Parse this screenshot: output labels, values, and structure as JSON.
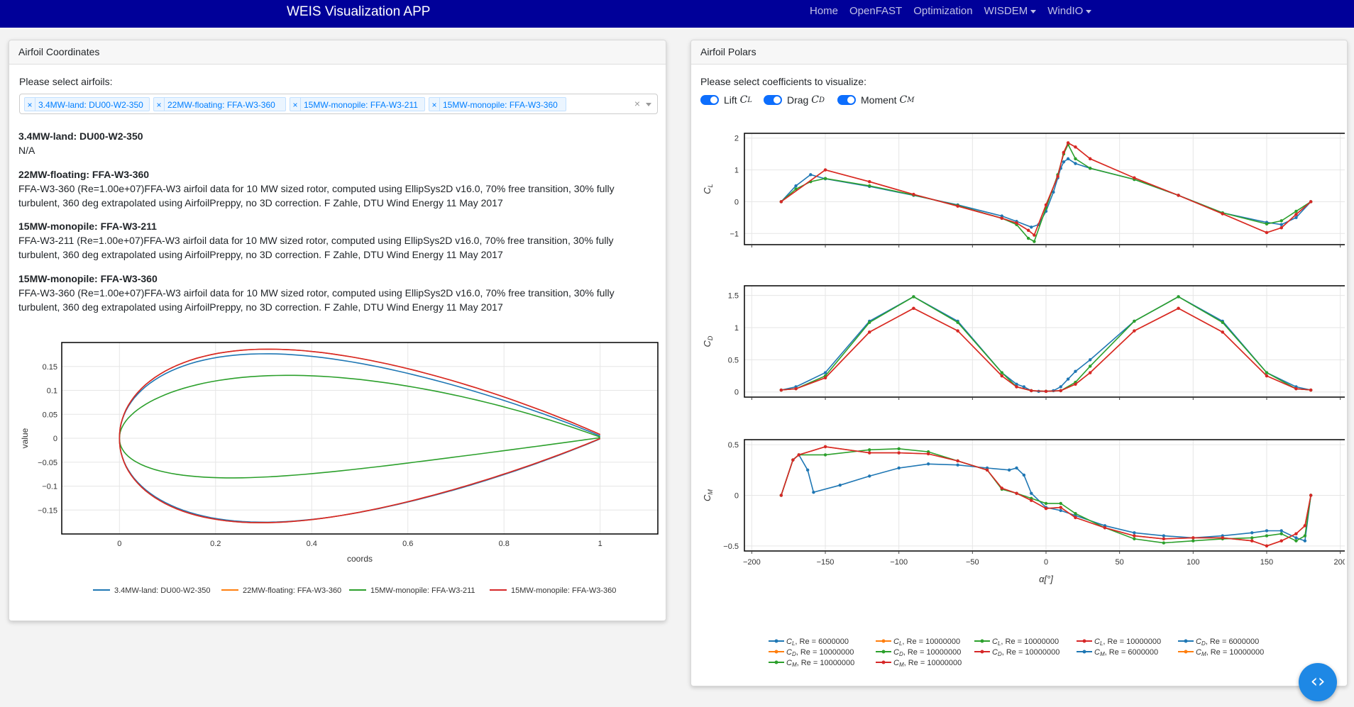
{
  "navbar": {
    "brand": "WEIS Visualization APP",
    "items": [
      {
        "label": "Home",
        "dropdown": false
      },
      {
        "label": "OpenFAST",
        "dropdown": false
      },
      {
        "label": "Optimization",
        "dropdown": false
      },
      {
        "label": "WISDEM",
        "dropdown": true
      },
      {
        "label": "WindIO",
        "dropdown": true
      }
    ],
    "background": "#000099"
  },
  "left_card": {
    "title": "Airfoil Coordinates",
    "prompt": "Please select airfoils:",
    "selected": [
      "3.4MW-land: DU00-W2-350",
      "22MW-floating: FFA-W3-360",
      "15MW-monopile: FFA-W3-211",
      "15MW-monopile: FFA-W3-360"
    ],
    "clear_glyph": "×",
    "descriptions": [
      {
        "title": "3.4MW-land: DU00-W2-350",
        "text": "N/A"
      },
      {
        "title": "22MW-floating: FFA-W3-360",
        "text": "FFA-W3-360 (Re=1.00e+07)FFA-W3 airfoil data for 10 MW sized rotor, computed using EllipSys2D v16.0, 70% free transition, 30% fully turbulent, 360 deg extrapolated using AirfoilPreppy, no 3D correction. F Zahle, DTU Wind Energy 11 May 2017"
      },
      {
        "title": "15MW-monopile: FFA-W3-211",
        "text": "FFA-W3-211 (Re=1.00e+07)FFA-W3 airfoil data for 10 MW sized rotor, computed using EllipSys2D v16.0, 70% free transition, 30% fully turbulent, 360 deg extrapolated using AirfoilPreppy, no 3D correction. F Zahle, DTU Wind Energy 11 May 2017"
      },
      {
        "title": "15MW-monopile: FFA-W3-360",
        "text": "FFA-W3-360 (Re=1.00e+07)FFA-W3 airfoil data for 10 MW sized rotor, computed using EllipSys2D v16.0, 70% free transition, 30% fully turbulent, 360 deg extrapolated using AirfoilPreppy, no 3D correction. F Zahle, DTU Wind Energy 11 May 2017"
      }
    ]
  },
  "right_card": {
    "title": "Airfoil Polars",
    "prompt": "Please select coefficients to visualize:",
    "toggles": [
      {
        "label": "Lift",
        "sym": "C",
        "sub": "L",
        "on": true
      },
      {
        "label": "Drag",
        "sym": "C",
        "sub": "D",
        "on": true
      },
      {
        "label": "Moment",
        "sym": "C",
        "sub": "M",
        "on": true
      }
    ]
  },
  "fab_glyph": "‹›",
  "chart_data": [
    {
      "type": "line",
      "xlabel": "coords",
      "ylabel": "value",
      "xlim": [
        -0.12,
        1.12
      ],
      "ylim": [
        -0.2,
        0.2
      ],
      "xticks": [
        "0",
        "0.2",
        "0.4",
        "0.6",
        "0.8",
        "1"
      ],
      "yticks": [
        "0.15",
        "0.1",
        "0.05",
        "0",
        "−0.05",
        "−0.1",
        "−0.15"
      ],
      "legend_position": "bottom",
      "series": [
        {
          "name": "3.4MW-land: DU00-W2-350",
          "color": "#1f77b4",
          "thickness": 0.35,
          "max_pos": 0.3,
          "te_upper": 0.008,
          "te_lower": -0.002,
          "camber": 0.0
        },
        {
          "name": "22MW-floating: FFA-W3-360",
          "color": "#ff7f0e",
          "thickness": 0.36,
          "max_pos": 0.3,
          "te_upper": 0.013,
          "te_lower": -0.001,
          "camber": 0.002
        },
        {
          "name": "15MW-monopile: FFA-W3-211",
          "color": "#2ca02c",
          "thickness": 0.211,
          "max_pos": 0.3,
          "te_upper": 0.004,
          "te_lower": 0.002,
          "camber": 0.013
        },
        {
          "name": "15MW-monopile: FFA-W3-360",
          "color": "#d62728",
          "thickness": 0.36,
          "max_pos": 0.3,
          "te_upper": 0.013,
          "te_lower": -0.001,
          "camber": 0.002
        }
      ]
    },
    {
      "type": "line",
      "subplots": [
        "C_L",
        "C_D",
        "C_M"
      ],
      "xlabel": "α[°]",
      "xlim": [
        -205,
        205
      ],
      "xticks": [
        -200,
        -150,
        -100,
        -50,
        0,
        50,
        100,
        150,
        200
      ],
      "subplot_ylims": {
        "C_L": [
          -1.35,
          2.15
        ],
        "C_D": [
          -0.08,
          1.65
        ],
        "C_M": [
          -0.55,
          0.55
        ]
      },
      "subplot_yticks": {
        "C_L": [
          2,
          1,
          0,
          -1
        ],
        "C_D": [
          1.5,
          1,
          0.5,
          0
        ],
        "C_M": [
          0.5,
          0,
          -0.5
        ]
      },
      "legend_position": "bottom",
      "series": [
        {
          "name": "C_L, Re = 6000000",
          "color": "#1f77b4",
          "coef": "L",
          "alpha": [
            -180,
            -170,
            -160,
            -150,
            -120,
            -90,
            -60,
            -30,
            -20,
            -10,
            -5,
            0,
            5,
            8,
            10,
            12,
            15,
            20,
            30,
            60,
            90,
            120,
            150,
            160,
            170,
            180
          ],
          "values": [
            0,
            0.5,
            0.85,
            0.72,
            0.48,
            0.2,
            -0.1,
            -0.45,
            -0.62,
            -0.8,
            -0.72,
            -0.3,
            0.3,
            0.75,
            1.05,
            1.25,
            1.35,
            1.2,
            1.05,
            0.7,
            0.2,
            -0.35,
            -0.65,
            -0.72,
            -0.5,
            0
          ]
        },
        {
          "name": "C_L, Re = 10000000",
          "color": "#ff7f0e",
          "coef": "L",
          "alpha": [
            -180,
            -150,
            -120,
            -90,
            -60,
            -30,
            -20,
            -12,
            -8,
            0,
            8,
            12,
            15,
            20,
            30,
            60,
            90,
            120,
            150,
            160,
            170,
            180
          ],
          "values": [
            0,
            1.0,
            0.63,
            0.23,
            -0.14,
            -0.52,
            -0.67,
            -0.9,
            -1.05,
            -0.1,
            0.8,
            1.55,
            1.85,
            1.72,
            1.35,
            0.75,
            0.2,
            -0.38,
            -0.97,
            -0.82,
            -0.4,
            0
          ]
        },
        {
          "name": "C_L, Re = 10000000",
          "color": "#2ca02c",
          "coef": "L",
          "alpha": [
            -180,
            -170,
            -160,
            -150,
            -120,
            -90,
            -60,
            -30,
            -20,
            -12,
            -8,
            0,
            8,
            12,
            15,
            20,
            30,
            60,
            90,
            120,
            150,
            160,
            170,
            180
          ],
          "values": [
            0,
            0.4,
            0.63,
            0.73,
            0.5,
            0.21,
            -0.12,
            -0.52,
            -0.72,
            -1.15,
            -1.25,
            -0.2,
            0.85,
            1.5,
            1.8,
            1.35,
            1.05,
            0.7,
            0.2,
            -0.35,
            -0.7,
            -0.6,
            -0.3,
            0
          ]
        },
        {
          "name": "C_L, Re = 10000000",
          "color": "#d62728",
          "coef": "L",
          "alpha": [
            -180,
            -150,
            -120,
            -90,
            -60,
            -30,
            -20,
            -12,
            -8,
            0,
            8,
            12,
            15,
            20,
            30,
            60,
            90,
            120,
            150,
            160,
            170,
            180
          ],
          "values": [
            0,
            1.0,
            0.63,
            0.23,
            -0.14,
            -0.52,
            -0.67,
            -0.9,
            -1.05,
            -0.1,
            0.8,
            1.55,
            1.85,
            1.72,
            1.35,
            0.75,
            0.2,
            -0.38,
            -0.97,
            -0.82,
            -0.4,
            0
          ]
        },
        {
          "name": "C_D, Re = 6000000",
          "color": "#1f77b4",
          "coef": "D",
          "alpha": [
            -180,
            -170,
            -150,
            -120,
            -90,
            -60,
            -30,
            -20,
            -15,
            -10,
            -5,
            0,
            5,
            10,
            15,
            20,
            30,
            60,
            90,
            120,
            150,
            170,
            180
          ],
          "values": [
            0.03,
            0.08,
            0.3,
            1.1,
            1.48,
            1.1,
            0.3,
            0.12,
            0.08,
            0.02,
            0.01,
            0.01,
            0.02,
            0.08,
            0.2,
            0.32,
            0.5,
            1.1,
            1.48,
            1.1,
            0.3,
            0.08,
            0.03
          ]
        },
        {
          "name": "C_D, Re = 10000000",
          "color": "#ff7f0e",
          "coef": "D",
          "alpha": [
            -180,
            -170,
            -150,
            -120,
            -90,
            -60,
            -30,
            -20,
            -10,
            0,
            10,
            20,
            30,
            60,
            90,
            120,
            150,
            170,
            180
          ],
          "values": [
            0.03,
            0.05,
            0.22,
            0.93,
            1.3,
            0.95,
            0.25,
            0.08,
            0.02,
            0.01,
            0.02,
            0.12,
            0.3,
            0.95,
            1.3,
            0.93,
            0.25,
            0.05,
            0.03
          ]
        },
        {
          "name": "C_D, Re = 10000000",
          "color": "#2ca02c",
          "coef": "D",
          "alpha": [
            -180,
            -170,
            -150,
            -120,
            -90,
            -60,
            -30,
            -20,
            -10,
            0,
            10,
            20,
            30,
            60,
            90,
            120,
            150,
            170,
            180
          ],
          "values": [
            0.03,
            0.05,
            0.25,
            1.08,
            1.48,
            1.08,
            0.3,
            0.08,
            0.02,
            0.01,
            0.02,
            0.15,
            0.4,
            1.1,
            1.48,
            1.08,
            0.3,
            0.05,
            0.03
          ]
        },
        {
          "name": "C_D, Re = 10000000",
          "color": "#d62728",
          "coef": "D",
          "alpha": [
            -180,
            -170,
            -150,
            -120,
            -90,
            -60,
            -30,
            -20,
            -10,
            0,
            10,
            20,
            30,
            60,
            90,
            120,
            150,
            170,
            180
          ],
          "values": [
            0.03,
            0.05,
            0.22,
            0.93,
            1.3,
            0.95,
            0.25,
            0.08,
            0.02,
            0.01,
            0.02,
            0.12,
            0.3,
            0.95,
            1.3,
            0.93,
            0.25,
            0.05,
            0.03
          ]
        },
        {
          "name": "C_M, Re = 6000000",
          "color": "#1f77b4",
          "coef": "M",
          "alpha": [
            -180,
            -172,
            -168,
            -162,
            -158,
            -140,
            -120,
            -100,
            -80,
            -60,
            -40,
            -25,
            -20,
            -15,
            -10,
            0,
            10,
            20,
            40,
            60,
            80,
            100,
            120,
            140,
            150,
            160,
            170,
            176,
            180
          ],
          "values": [
            0,
            0.35,
            0.4,
            0.25,
            0.03,
            0.1,
            0.19,
            0.27,
            0.31,
            0.3,
            0.27,
            0.25,
            0.27,
            0.2,
            0.02,
            -0.12,
            -0.15,
            -0.2,
            -0.3,
            -0.37,
            -0.4,
            -0.42,
            -0.4,
            -0.37,
            -0.35,
            -0.35,
            -0.42,
            -0.45,
            0
          ]
        },
        {
          "name": "C_M, Re = 10000000",
          "color": "#ff7f0e",
          "coef": "M",
          "alpha": [
            -180,
            -172,
            -168,
            -150,
            -120,
            -100,
            -80,
            -60,
            -40,
            -30,
            -20,
            -10,
            0,
            10,
            20,
            40,
            60,
            80,
            100,
            120,
            140,
            150,
            160,
            170,
            176,
            180
          ],
          "values": [
            0,
            0.35,
            0.4,
            0.48,
            0.42,
            0.42,
            0.41,
            0.34,
            0.25,
            0.07,
            0.02,
            -0.05,
            -0.13,
            -0.12,
            -0.22,
            -0.32,
            -0.4,
            -0.43,
            -0.42,
            -0.42,
            -0.45,
            -0.5,
            -0.45,
            -0.38,
            -0.3,
            0
          ]
        },
        {
          "name": "C_M, Re = 10000000",
          "color": "#2ca02c",
          "coef": "M",
          "alpha": [
            -180,
            -172,
            -168,
            -150,
            -120,
            -100,
            -80,
            -60,
            -40,
            -30,
            -20,
            -10,
            0,
            10,
            20,
            40,
            60,
            80,
            100,
            120,
            140,
            150,
            160,
            170,
            176,
            180
          ],
          "values": [
            0,
            0.35,
            0.4,
            0.4,
            0.45,
            0.46,
            0.43,
            0.34,
            0.25,
            0.06,
            0.02,
            -0.03,
            -0.08,
            -0.08,
            -0.18,
            -0.32,
            -0.43,
            -0.47,
            -0.45,
            -0.43,
            -0.42,
            -0.4,
            -0.38,
            -0.45,
            -0.4,
            0
          ]
        },
        {
          "name": "C_M, Re = 10000000",
          "color": "#d62728",
          "coef": "M",
          "alpha": [
            -180,
            -172,
            -168,
            -150,
            -120,
            -100,
            -80,
            -60,
            -40,
            -30,
            -20,
            -10,
            0,
            10,
            20,
            40,
            60,
            80,
            100,
            120,
            140,
            150,
            160,
            170,
            176,
            180
          ],
          "values": [
            0,
            0.35,
            0.4,
            0.48,
            0.42,
            0.42,
            0.41,
            0.34,
            0.25,
            0.07,
            0.02,
            -0.05,
            -0.13,
            -0.12,
            -0.22,
            -0.32,
            -0.4,
            -0.43,
            -0.42,
            -0.42,
            -0.45,
            -0.5,
            -0.45,
            -0.38,
            -0.3,
            0
          ]
        }
      ]
    }
  ]
}
